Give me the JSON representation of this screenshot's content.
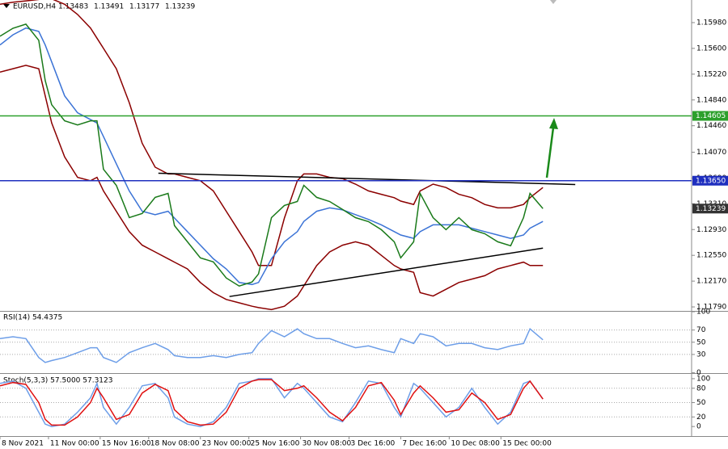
{
  "chart_data": [
    {
      "type": "line",
      "title": "EURUSD,H4",
      "ohlc": [
        1.13483,
        1.13491,
        1.13177,
        1.13239
      ],
      "x": [
        0,
        4,
        8,
        12,
        14,
        16,
        20,
        24,
        28,
        30,
        32,
        36,
        40,
        44,
        48,
        52,
        54,
        58,
        62,
        66,
        70,
        74,
        78,
        80,
        84,
        88,
        92,
        94,
        98,
        102,
        106,
        110,
        114,
        118,
        122,
        124,
        128,
        130,
        134,
        138,
        142,
        146,
        150,
        154,
        158,
        162,
        164,
        168
      ],
      "xlim": [
        0,
        214
      ],
      "xticks": [
        {
          "value": 0,
          "label": "8 Nov 2021"
        },
        {
          "value": 15,
          "label": "11 Nov 00:00"
        },
        {
          "value": 31,
          "label": "15 Nov 16:00"
        },
        {
          "value": 46,
          "label": "18 Nov 08:00"
        },
        {
          "value": 62,
          "label": "23 Nov 00:00"
        },
        {
          "value": 77,
          "label": "25 Nov 16:00"
        },
        {
          "value": 93,
          "label": "30 Nov 08:00"
        },
        {
          "value": 108,
          "label": "3 Dec 16:00"
        },
        {
          "value": 124,
          "label": "7 Dec 16:00"
        },
        {
          "value": 139,
          "label": "10 Dec 08:00"
        },
        {
          "value": 155,
          "label": "15 Dec 00:00"
        }
      ],
      "ylim": [
        1.11731,
        1.16313
      ],
      "yticks": [
        {
          "value": 1.1598,
          "label": "1.15980"
        },
        {
          "value": 1.156,
          "label": "1.15600"
        },
        {
          "value": 1.1522,
          "label": "1.15220"
        },
        {
          "value": 1.1484,
          "label": "1.14840"
        },
        {
          "value": 1.1446,
          "label": "1.14460"
        },
        {
          "value": 1.1407,
          "label": "1.14070"
        },
        {
          "value": 1.1369,
          "label": "1.13690"
        },
        {
          "value": 1.1331,
          "label": "1.13310"
        },
        {
          "value": 1.1293,
          "label": "1.12930"
        },
        {
          "value": 1.1255,
          "label": "1.12550"
        },
        {
          "value": 1.1217,
          "label": "1.12170"
        },
        {
          "value": 1.1179,
          "label": "1.11790"
        }
      ],
      "grid": false,
      "series": [
        {
          "color": "#8b0000",
          "values": [
            1.1625,
            1.1628,
            1.163,
            1.1632,
            1.1635,
            1.1633,
            1.1625,
            1.161,
            1.159,
            1.1575,
            1.156,
            1.153,
            1.148,
            1.142,
            1.1385,
            1.1375,
            1.1375,
            1.137,
            1.1365,
            1.135,
            1.132,
            1.129,
            1.126,
            1.124,
            1.124,
            1.131,
            1.1365,
            1.1375,
            1.1375,
            1.137,
            1.1368,
            1.136,
            1.135,
            1.1345,
            1.134,
            1.1335,
            1.133,
            1.135,
            1.136,
            1.1355,
            1.1345,
            1.134,
            1.133,
            1.1325,
            1.1325,
            1.133,
            1.134,
            1.1355
          ]
        },
        {
          "color": "#8b0000",
          "values": [
            1.1525,
            1.153,
            1.1535,
            1.153,
            1.149,
            1.145,
            1.14,
            1.137,
            1.1365,
            1.137,
            1.135,
            1.132,
            1.129,
            1.127,
            1.126,
            1.125,
            1.1245,
            1.1235,
            1.1215,
            1.12,
            1.119,
            1.1185,
            1.118,
            1.1178,
            1.1175,
            1.118,
            1.1195,
            1.121,
            1.124,
            1.126,
            1.127,
            1.1275,
            1.127,
            1.1255,
            1.124,
            1.1235,
            1.123,
            1.12,
            1.1195,
            1.1205,
            1.1215,
            1.122,
            1.1225,
            1.1235,
            1.124,
            1.1245,
            1.124,
            1.124
          ]
        },
        {
          "color": "#3b73d6",
          "values": [
            1.1565,
            1.158,
            1.159,
            1.1585,
            1.1565,
            1.154,
            1.149,
            1.1465,
            1.1455,
            1.145,
            1.143,
            1.139,
            1.135,
            1.132,
            1.1315,
            1.132,
            1.131,
            1.129,
            1.127,
            1.125,
            1.1235,
            1.1215,
            1.1212,
            1.1215,
            1.125,
            1.1275,
            1.129,
            1.1305,
            1.132,
            1.1325,
            1.1322,
            1.1315,
            1.1308,
            1.13,
            1.129,
            1.1285,
            1.128,
            1.129,
            1.13,
            1.13,
            1.13,
            1.1295,
            1.129,
            1.1285,
            1.128,
            1.1285,
            1.1295,
            1.1305
          ]
        },
        {
          "color": "#1a7a1a",
          "values": [
            1.15779,
            1.15897,
            1.15957,
            1.15719,
            1.15126,
            1.14769,
            1.14532,
            1.14472,
            1.14532,
            1.14532,
            1.13819,
            1.13582,
            1.13106,
            1.13166,
            1.13404,
            1.13463,
            1.12988,
            1.1275,
            1.12513,
            1.12453,
            1.12216,
            1.12097,
            1.12157,
            1.12276,
            1.13106,
            1.13285,
            1.13344,
            1.13582,
            1.13404,
            1.13344,
            1.13226,
            1.13106,
            1.13047,
            1.12928,
            1.1275,
            1.12513,
            1.1275,
            1.13463,
            1.13106,
            1.12928,
            1.13106,
            1.12928,
            1.12869,
            1.1275,
            1.12691,
            1.13106,
            1.13463,
            1.13239
          ]
        }
      ],
      "hlines": [
        {
          "value": 1.14605,
          "label": "1.14605",
          "color": "#2ca02c"
        },
        {
          "value": 1.1365,
          "label": "1.13650",
          "color": "#1f2fbf"
        },
        {
          "value": 1.13239,
          "label": "1.13239",
          "color": "#333333"
        }
      ],
      "trendlines": [
        {
          "x": [
            49,
            178
          ],
          "y": [
            1.1376,
            1.13594
          ]
        },
        {
          "x": [
            71,
            168
          ],
          "y": [
            1.11943,
            1.12656
          ]
        }
      ]
    },
    {
      "type": "line",
      "title": "RSI(14) 54.4375",
      "ylim": [
        -0.5,
        100
      ],
      "yticks": [
        100,
        70,
        50,
        30,
        0
      ],
      "grid": true,
      "series": [
        {
          "color": "#6d9ee8",
          "values": [
            56,
            59,
            56,
            25,
            17,
            20,
            25,
            33,
            41,
            41,
            25,
            17,
            33,
            41,
            48,
            38,
            28,
            25,
            25,
            28,
            25,
            30,
            33,
            48,
            69,
            59,
            72,
            64,
            56,
            56,
            48,
            41,
            44,
            38,
            33,
            56,
            48,
            64,
            59,
            44,
            48,
            48,
            41,
            38,
            44,
            48,
            72,
            54
          ]
        }
      ]
    },
    {
      "type": "line",
      "title": "Stoch(5,3,3) 57.5000 57.3123",
      "ylim": [
        -20,
        110
      ],
      "yticks": [
        100,
        80,
        50,
        20,
        0
      ],
      "grid": true,
      "series": [
        {
          "color": "#6d9ee8",
          "values": [
            90,
            95,
            80,
            30,
            5,
            0,
            5,
            30,
            60,
            90,
            40,
            5,
            40,
            85,
            90,
            60,
            20,
            5,
            0,
            10,
            40,
            90,
            95,
            100,
            100,
            60,
            90,
            80,
            50,
            20,
            10,
            50,
            95,
            90,
            40,
            20,
            90,
            80,
            50,
            20,
            40,
            80,
            40,
            5,
            30,
            90,
            95,
            57.5
          ]
        },
        {
          "color": "#e01010",
          "values": [
            85,
            92,
            88,
            50,
            15,
            3,
            3,
            20,
            50,
            80,
            60,
            15,
            25,
            70,
            88,
            75,
            35,
            10,
            3,
            5,
            30,
            80,
            95,
            98,
            98,
            75,
            80,
            85,
            60,
            30,
            12,
            40,
            85,
            92,
            55,
            25,
            70,
            85,
            60,
            30,
            35,
            70,
            50,
            15,
            25,
            80,
            95,
            57.3
          ]
        }
      ]
    }
  ]
}
